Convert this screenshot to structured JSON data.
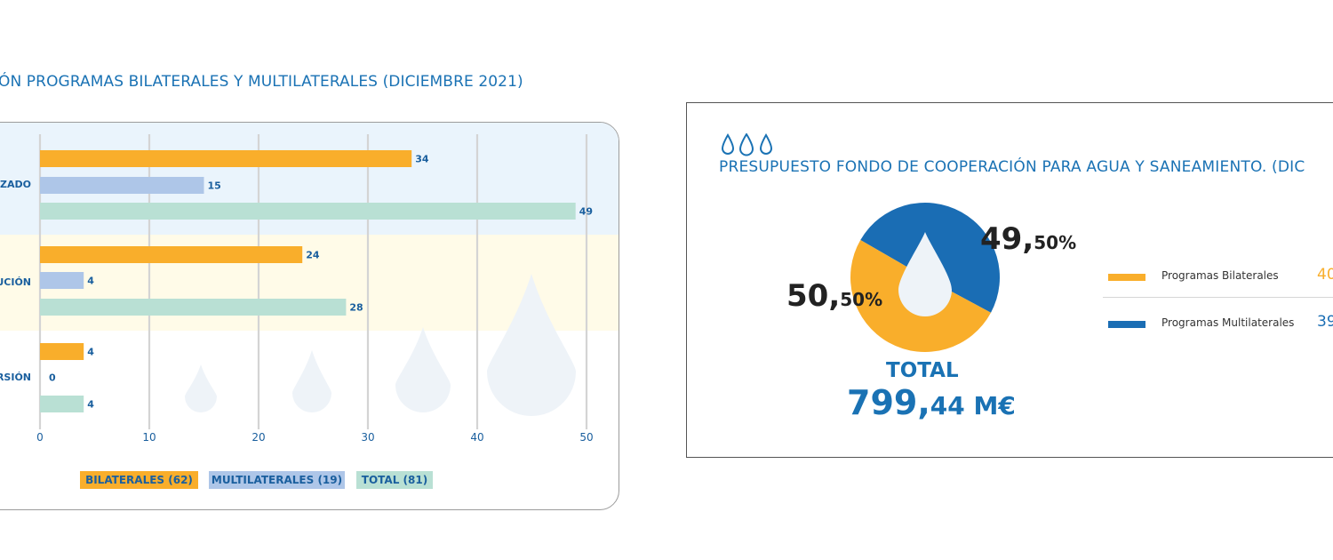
{
  "left_panel": {
    "title": "ÓN PROGRAMAS BILATERALES Y MULTILATERALES (DICIEMBRE 2021)"
  },
  "right_panel": {
    "title": "PRESUPUESTO FONDO DE COOPERACIÓN PARA AGUA Y SANEAMIENTO. (DIC",
    "pct_multilateral_big": "49,",
    "pct_multilateral_small": "50%",
    "pct_bilateral_big": "50,",
    "pct_bilateral_small": "50%",
    "total_label": "TOTAL",
    "total_value_big": "799,",
    "total_value_small": "44 M€",
    "legend": [
      {
        "label": "Programas Bilaterales",
        "value": "40",
        "color": "#f9ae2b"
      },
      {
        "label": "Programas Multilaterales",
        "value": "39",
        "color": "#1a6db4"
      }
    ]
  },
  "chart_data": [
    {
      "type": "bar",
      "orientation": "horizontal",
      "categories": [
        "IZADO",
        "UCIÓN",
        "RSIÓN"
      ],
      "series": [
        {
          "name": "BILATERALES (62)",
          "values": [
            34,
            24,
            4
          ],
          "color": "#f9ae2b"
        },
        {
          "name": "MULTILATERALES (19)",
          "values": [
            15,
            4,
            0
          ],
          "color": "#aec6e8"
        },
        {
          "name": "TOTAL (81)",
          "values": [
            49,
            28,
            4
          ],
          "color": "#b9e0d4"
        }
      ],
      "x_ticks": [
        "0",
        "10",
        "20",
        "30",
        "40",
        "50"
      ],
      "xlim": [
        0,
        50
      ],
      "grid": true,
      "legend_position": "bottom",
      "band_colors": [
        "#eaf4fc",
        "#fffbe8",
        "#ffffff"
      ],
      "value_label_color": "#1a5f9e"
    },
    {
      "type": "pie",
      "slices": [
        {
          "name": "Programas Bilaterales",
          "value": 50.5,
          "color": "#f9ae2b"
        },
        {
          "name": "Programas Multilaterales",
          "value": 49.5,
          "color": "#1a6db4"
        }
      ],
      "total": "799,44 M€"
    }
  ]
}
